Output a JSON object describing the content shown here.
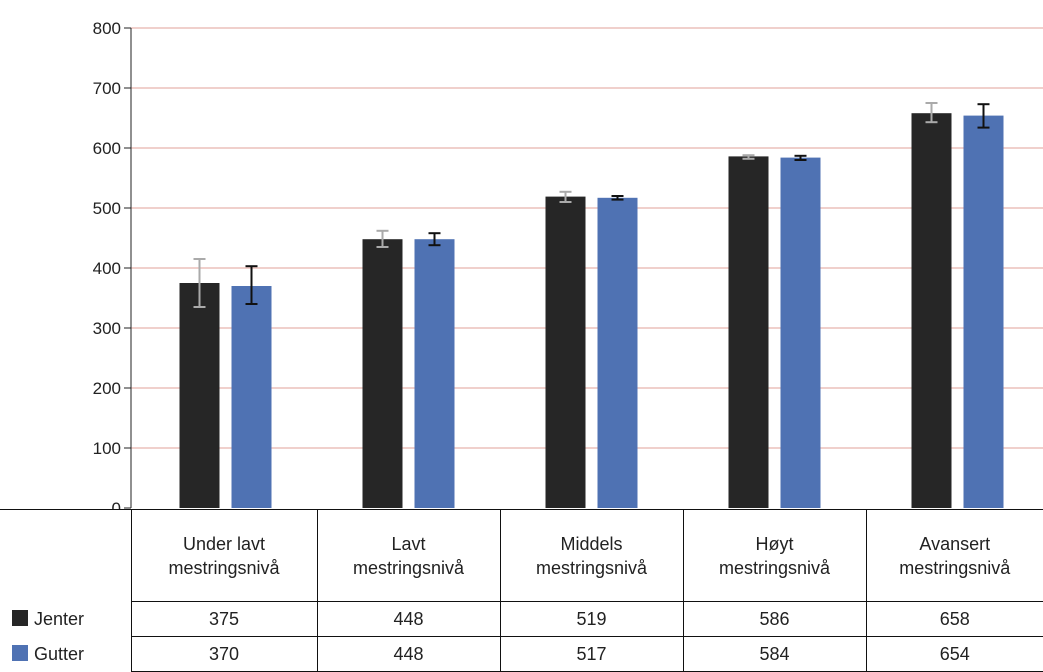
{
  "chart_data": {
    "type": "bar",
    "categories": [
      "Under lavt mestringsnivå",
      "Lavt mestringsnivå",
      "Middels mestringsnivå",
      "Høyt mestringsnivå",
      "Avansert mestringsnivå"
    ],
    "category_lines": [
      [
        "Under lavt",
        "mestringsnivå"
      ],
      [
        "Lavt",
        "mestringsnivå"
      ],
      [
        "Middels",
        "mestringsnivå"
      ],
      [
        "Høyt",
        "mestringsnivå"
      ],
      [
        "Avansert",
        "mestringsnivå"
      ]
    ],
    "series": [
      {
        "name": "Jenter",
        "values": [
          375,
          448,
          519,
          586,
          658
        ],
        "err_low": [
          335,
          435,
          510,
          582,
          643
        ],
        "err_high": [
          415,
          462,
          527,
          588,
          675
        ],
        "color": "#262626",
        "errcolor": "#aaaaaa"
      },
      {
        "name": "Gutter",
        "values": [
          370,
          448,
          517,
          584,
          654
        ],
        "err_low": [
          340,
          438,
          514,
          580,
          634
        ],
        "err_high": [
          403,
          458,
          520,
          587,
          673
        ],
        "color": "#4f72b3",
        "errcolor": "#111111"
      }
    ],
    "yticks": [
      0,
      100,
      200,
      300,
      400,
      500,
      600,
      700,
      800
    ],
    "ylim": [
      0,
      800
    ],
    "grid": true,
    "gridcolor": "#e8b4ad",
    "axiscolor": "#222222",
    "legend": "data-table"
  }
}
